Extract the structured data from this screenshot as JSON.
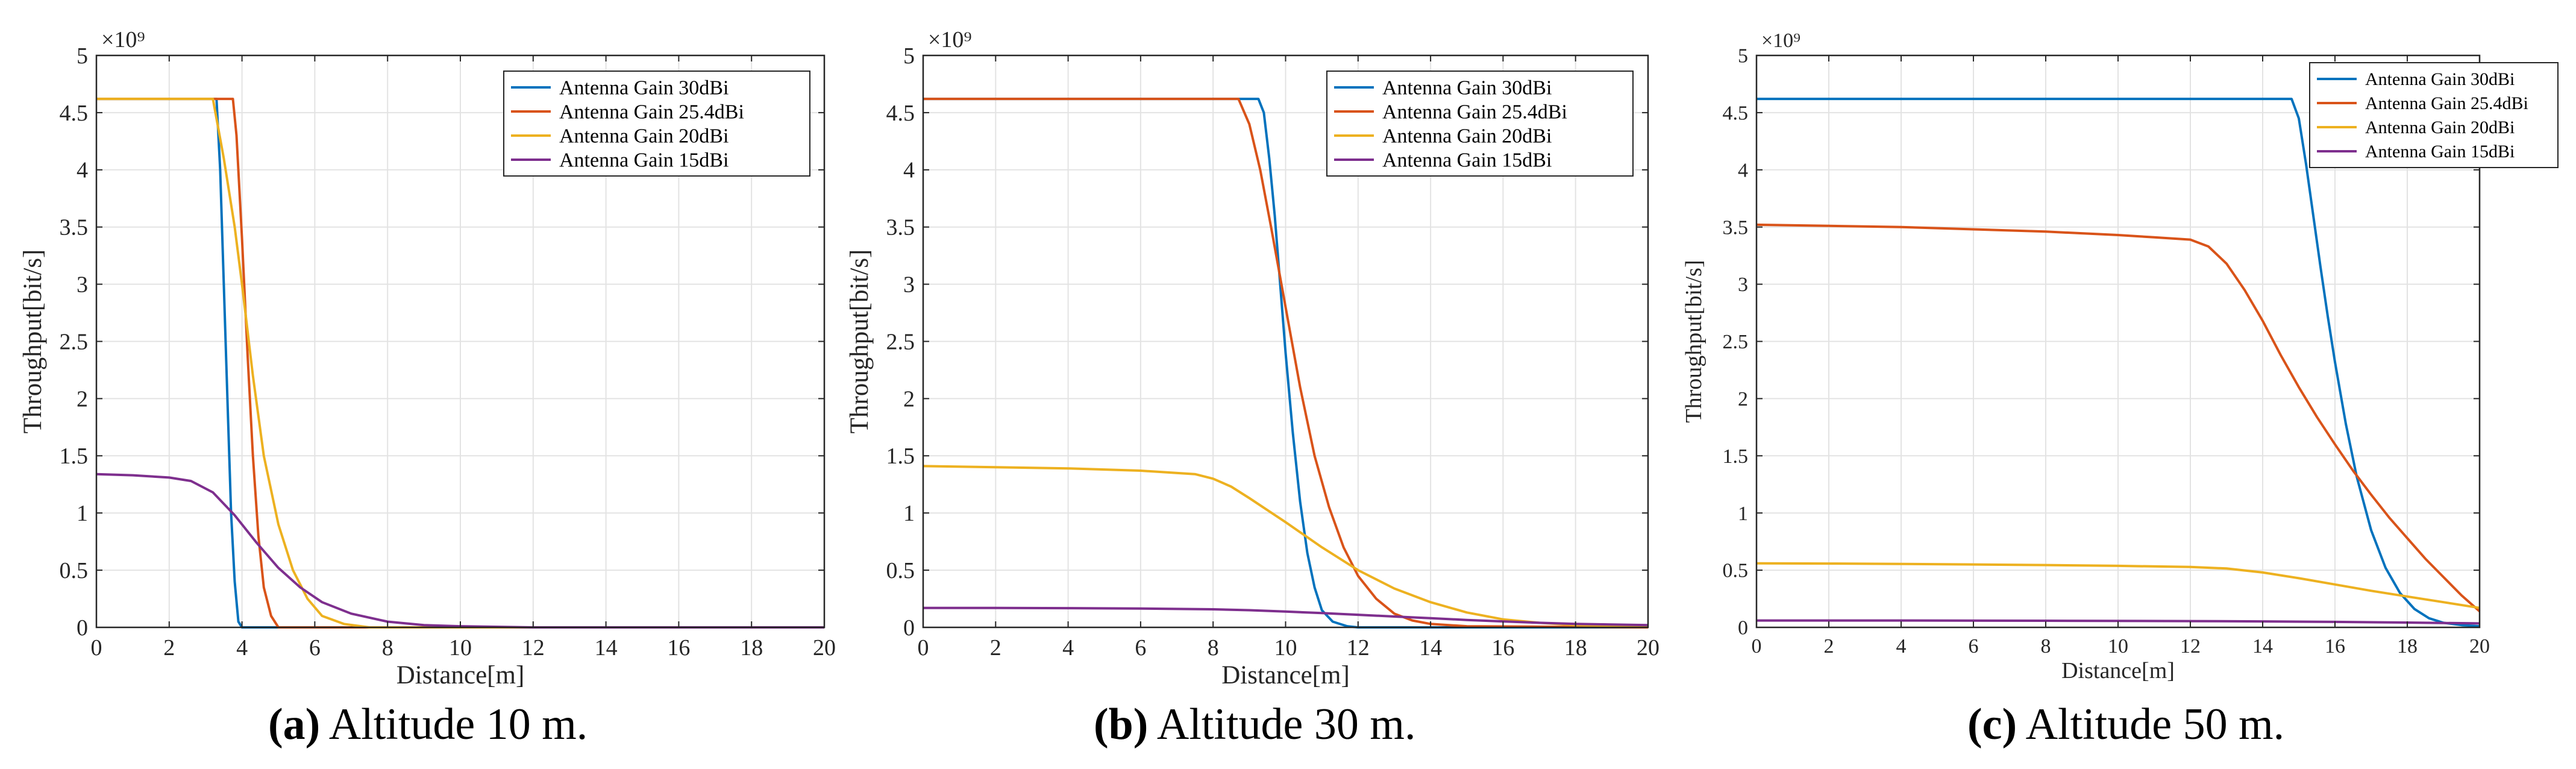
{
  "captions": [
    {
      "letter": "(a)",
      "text": "Altitude 10 m."
    },
    {
      "letter": "(b)",
      "text": "Altitude 30 m."
    },
    {
      "letter": "(c)",
      "text": "Altitude 50 m."
    }
  ],
  "series_colors": [
    "#0072BD",
    "#D95319",
    "#EDB120",
    "#7E2F8E"
  ],
  "chart_data": [
    {
      "type": "line",
      "title": "",
      "xlabel": "Distance[m]",
      "ylabel": "Throughput[bit/s]",
      "exponent_label": "×10⁹",
      "xlim": [
        0,
        20
      ],
      "ylim": [
        0,
        5
      ],
      "xticks": [
        0,
        2,
        4,
        6,
        8,
        10,
        12,
        14,
        16,
        18,
        20
      ],
      "yticks": [
        0,
        0.5,
        1,
        1.5,
        2,
        2.5,
        3,
        3.5,
        4,
        4.5,
        5
      ],
      "ytick_labels": [
        "0",
        "0.5",
        "1",
        "1.5",
        "2",
        "2.5",
        "3",
        "3.5",
        "4",
        "4.5",
        "5"
      ],
      "grid": true,
      "legend_position": "top-right",
      "series": [
        {
          "name": "Antenna Gain 30dBi",
          "x": [
            0,
            3.3,
            3.4,
            3.5,
            3.6,
            3.7,
            3.8,
            3.9,
            4.0,
            20
          ],
          "y": [
            4.62,
            4.62,
            4.0,
            3.0,
            2.0,
            1.0,
            0.4,
            0.05,
            0,
            0
          ]
        },
        {
          "name": "Antenna Gain 25.4dBi",
          "x": [
            0,
            3.75,
            3.85,
            4.0,
            4.15,
            4.3,
            4.45,
            4.6,
            4.8,
            5.0,
            20
          ],
          "y": [
            4.62,
            4.62,
            4.3,
            3.4,
            2.4,
            1.5,
            0.8,
            0.35,
            0.1,
            0,
            0
          ]
        },
        {
          "name": "Antenna Gain 20dBi",
          "x": [
            0,
            3.2,
            3.5,
            3.8,
            4.0,
            4.3,
            4.6,
            5.0,
            5.4,
            5.8,
            6.2,
            6.8,
            7.5,
            20
          ],
          "y": [
            4.62,
            4.62,
            4.1,
            3.5,
            3.0,
            2.2,
            1.5,
            0.9,
            0.5,
            0.25,
            0.1,
            0.03,
            0,
            0
          ]
        },
        {
          "name": "Antenna Gain 15dBi",
          "x": [
            0,
            1,
            2,
            2.6,
            3.2,
            3.8,
            4.4,
            5.0,
            5.6,
            6.2,
            7,
            8,
            9,
            10,
            12,
            20
          ],
          "y": [
            1.34,
            1.33,
            1.31,
            1.28,
            1.18,
            0.98,
            0.74,
            0.52,
            0.35,
            0.22,
            0.12,
            0.05,
            0.02,
            0.01,
            0,
            0
          ]
        }
      ]
    },
    {
      "type": "line",
      "title": "",
      "xlabel": "Distance[m]",
      "ylabel": "Throughput[bit/s]",
      "exponent_label": "×10⁹",
      "xlim": [
        0,
        20
      ],
      "ylim": [
        0,
        5
      ],
      "xticks": [
        0,
        2,
        4,
        6,
        8,
        10,
        12,
        14,
        16,
        18,
        20
      ],
      "yticks": [
        0,
        0.5,
        1,
        1.5,
        2,
        2.5,
        3,
        3.5,
        4,
        4.5,
        5
      ],
      "ytick_labels": [
        "0",
        "0.5",
        "1",
        "1.5",
        "2",
        "2.5",
        "3",
        "3.5",
        "4",
        "4.5",
        "5"
      ],
      "grid": true,
      "legend_position": "top-right",
      "series": [
        {
          "name": "Antenna Gain 30dBi",
          "x": [
            0,
            9.25,
            9.4,
            9.55,
            9.7,
            9.85,
            10.0,
            10.2,
            10.4,
            10.6,
            10.8,
            11.0,
            11.3,
            11.7,
            12.0,
            20
          ],
          "y": [
            4.62,
            4.62,
            4.5,
            4.1,
            3.6,
            3.0,
            2.4,
            1.7,
            1.1,
            0.65,
            0.35,
            0.15,
            0.05,
            0.01,
            0,
            0
          ]
        },
        {
          "name": "Antenna Gain 25.4dBi",
          "x": [
            0,
            8.7,
            9.0,
            9.3,
            9.6,
            10.0,
            10.4,
            10.8,
            11.2,
            11.6,
            12.0,
            12.5,
            13.0,
            13.5,
            14.0,
            15.0,
            20
          ],
          "y": [
            4.62,
            4.62,
            4.4,
            4.0,
            3.5,
            2.8,
            2.1,
            1.5,
            1.05,
            0.7,
            0.45,
            0.25,
            0.12,
            0.06,
            0.03,
            0.01,
            0
          ]
        },
        {
          "name": "Antenna Gain 20dBi",
          "x": [
            0,
            2,
            4,
            6,
            7.5,
            8.0,
            8.5,
            9.0,
            10.0,
            11.0,
            12.0,
            13.0,
            14.0,
            15.0,
            16.0,
            17.0,
            18.0,
            20
          ],
          "y": [
            1.41,
            1.4,
            1.39,
            1.37,
            1.34,
            1.3,
            1.23,
            1.13,
            0.92,
            0.7,
            0.5,
            0.34,
            0.22,
            0.13,
            0.07,
            0.04,
            0.02,
            0.01
          ]
        },
        {
          "name": "Antenna Gain 15dBi",
          "x": [
            0,
            2,
            4,
            6,
            8,
            9,
            10,
            11,
            12,
            13,
            14,
            15,
            16,
            17,
            18,
            20
          ],
          "y": [
            0.17,
            0.17,
            0.168,
            0.165,
            0.158,
            0.15,
            0.138,
            0.125,
            0.11,
            0.095,
            0.08,
            0.065,
            0.052,
            0.04,
            0.03,
            0.02
          ]
        }
      ]
    },
    {
      "type": "line",
      "title": "",
      "xlabel": "Distance[m]",
      "ylabel": "Throughput[bit/s]",
      "exponent_label": "×10⁹",
      "xlim": [
        0,
        20
      ],
      "ylim": [
        0,
        5
      ],
      "xticks": [
        0,
        2,
        4,
        6,
        8,
        10,
        12,
        14,
        16,
        18,
        20
      ],
      "yticks": [
        0,
        0.5,
        1,
        1.5,
        2,
        2.5,
        3,
        3.5,
        4,
        4.5,
        5
      ],
      "ytick_labels": [
        "0",
        "0.5",
        "1",
        "1.5",
        "2",
        "2.5",
        "3",
        "3.5",
        "4",
        "4.5",
        "5"
      ],
      "grid": true,
      "legend_position": "top-right",
      "series": [
        {
          "name": "Antenna Gain 30dBi",
          "x": [
            0,
            14.8,
            15.0,
            15.2,
            15.4,
            15.6,
            15.8,
            16.0,
            16.3,
            16.6,
            17.0,
            17.4,
            17.8,
            18.2,
            18.6,
            19.0,
            19.5,
            20
          ],
          "y": [
            4.62,
            4.62,
            4.45,
            4.05,
            3.6,
            3.15,
            2.72,
            2.32,
            1.78,
            1.32,
            0.85,
            0.52,
            0.3,
            0.16,
            0.08,
            0.04,
            0.02,
            0.01
          ]
        },
        {
          "name": "Antenna Gain 25.4dBi",
          "x": [
            0,
            2,
            4,
            6,
            8,
            10,
            11,
            12,
            12.5,
            13.0,
            13.5,
            14.0,
            14.5,
            15.0,
            15.5,
            16.0,
            16.5,
            17.0,
            17.5,
            18.0,
            18.5,
            19.0,
            19.5,
            20
          ],
          "y": [
            3.52,
            3.51,
            3.5,
            3.48,
            3.46,
            3.43,
            3.41,
            3.39,
            3.33,
            3.18,
            2.95,
            2.68,
            2.38,
            2.1,
            1.84,
            1.6,
            1.37,
            1.16,
            0.96,
            0.78,
            0.6,
            0.44,
            0.28,
            0.14
          ]
        },
        {
          "name": "Antenna Gain 20dBi",
          "x": [
            0,
            2,
            4,
            6,
            8,
            10,
            12,
            13,
            14,
            15,
            16,
            17,
            18,
            19,
            20
          ],
          "y": [
            0.56,
            0.558,
            0.555,
            0.55,
            0.545,
            0.538,
            0.528,
            0.515,
            0.48,
            0.43,
            0.375,
            0.32,
            0.27,
            0.22,
            0.17
          ]
        },
        {
          "name": "Antenna Gain 15dBi",
          "x": [
            0,
            4,
            8,
            12,
            14,
            16,
            18,
            20
          ],
          "y": [
            0.06,
            0.06,
            0.058,
            0.055,
            0.052,
            0.048,
            0.042,
            0.035
          ]
        }
      ]
    }
  ]
}
